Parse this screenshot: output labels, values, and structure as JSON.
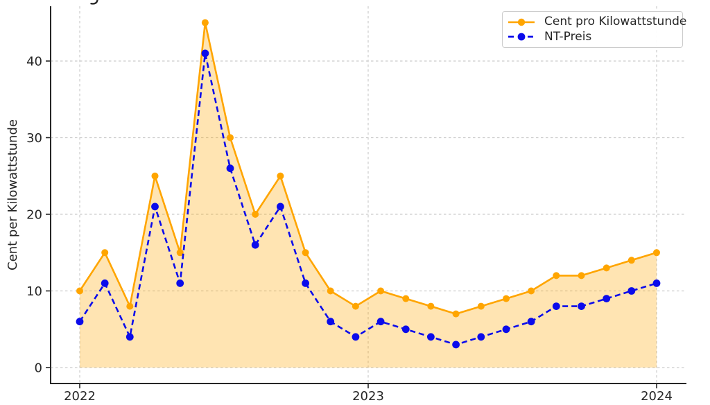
{
  "figure": {
    "clipped_title_fragment_glyph": "y-descender"
  },
  "chart_data": {
    "type": "line",
    "title": "",
    "xlabel": "",
    "ylabel": "Cent per Kilowattstunde",
    "x_tick_labels": [
      "2022",
      "2023",
      "2024"
    ],
    "x_tick_point_positions": [
      0,
      11.5,
      23
    ],
    "y_ticks": [
      0,
      10,
      20,
      30,
      40
    ],
    "y_tick_labels": [
      "0",
      "10",
      "20",
      "30",
      "40"
    ],
    "ylim": [
      -2.1,
      48
    ],
    "grid": true,
    "grid_style": "dashed",
    "legend_position": "upper right",
    "n_points": 24,
    "x_description": "monthly values from 2022 to 2024",
    "series": [
      {
        "name": "Cent pro Kilowattstunde",
        "color": "#FFA500",
        "line_style": "solid",
        "marker": "circle",
        "fill_to_zero": true,
        "fill_opacity": 0.3,
        "values": [
          10,
          15,
          8,
          25,
          15,
          45,
          30,
          20,
          25,
          15,
          10,
          8,
          10,
          9,
          8,
          7,
          8,
          9,
          10,
          12,
          12,
          13,
          14,
          15
        ]
      },
      {
        "name": "NT-Preis",
        "color": "#0B0BEB",
        "line_style": "dashed",
        "marker": "circle",
        "fill_to_zero": false,
        "values": [
          6,
          11,
          4,
          21,
          11,
          41,
          26,
          16,
          21,
          11,
          6,
          4,
          6,
          5,
          4,
          3,
          4,
          5,
          6,
          8,
          8,
          9,
          10,
          11
        ]
      }
    ],
    "colors": {
      "grid": "#cccccc",
      "axis": "#262626",
      "text": "#262626"
    }
  }
}
